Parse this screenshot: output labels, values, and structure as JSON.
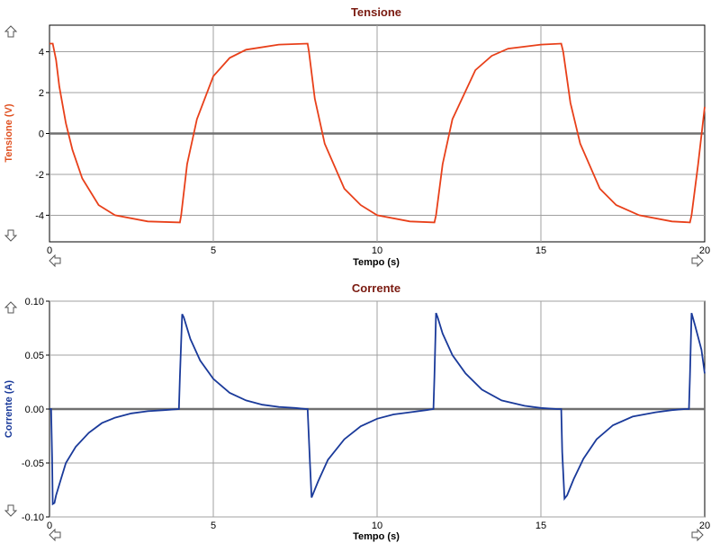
{
  "chart_data": [
    {
      "type": "line",
      "title": "Tensione",
      "xlabel": "Tempo (s)",
      "ylabel": "Tensione (V)",
      "xlim": [
        0,
        20
      ],
      "ylim": [
        -5.3,
        5.3
      ],
      "x_ticks": [
        0,
        5,
        10,
        15,
        20
      ],
      "y_ticks": [
        4,
        2,
        0,
        -2,
        -4
      ],
      "y_tick_labels": [
        "4",
        "2",
        "0",
        "-2",
        "-4"
      ],
      "grid": true,
      "series_color": "#e8401a",
      "series": [
        {
          "x": [
            0,
            0.1,
            0.2,
            0.3,
            0.5,
            0.7,
            1.0,
            1.5,
            2.0,
            3.0,
            3.98,
            4.02,
            4.2,
            4.5,
            5.0,
            5.5,
            6.0,
            7.0,
            7.88,
            7.92,
            8.1,
            8.4,
            9.0,
            9.5,
            10.0,
            11.0,
            11.75,
            11.8,
            12.0,
            12.3,
            13.0,
            13.5,
            14.0,
            15.0,
            15.62,
            15.68,
            15.9,
            16.2,
            16.8,
            17.3,
            18.0,
            19.0,
            19.55,
            19.6,
            19.8,
            20.0
          ],
          "values": [
            4.4,
            4.4,
            3.6,
            2.3,
            0.5,
            -0.8,
            -2.2,
            -3.5,
            -4.0,
            -4.3,
            -4.35,
            -4.0,
            -1.5,
            0.7,
            2.8,
            3.7,
            4.1,
            4.35,
            4.4,
            4.0,
            1.7,
            -0.5,
            -2.7,
            -3.5,
            -4.0,
            -4.3,
            -4.35,
            -4.0,
            -1.5,
            0.7,
            3.1,
            3.8,
            4.15,
            4.35,
            4.4,
            4.0,
            1.5,
            -0.5,
            -2.7,
            -3.5,
            -4.0,
            -4.3,
            -4.35,
            -4.0,
            -1.5,
            1.3
          ]
        }
      ]
    },
    {
      "type": "line",
      "title": "Corrente",
      "xlabel": "Tempo (s)",
      "ylabel": "Corrente (A)",
      "xlim": [
        0,
        20
      ],
      "ylim": [
        -0.1,
        0.1
      ],
      "x_ticks": [
        0,
        5,
        10,
        15,
        20
      ],
      "y_ticks": [
        0.1,
        0.05,
        0,
        -0.05,
        -0.1
      ],
      "y_tick_labels": [
        "0.10",
        "0.05",
        "0.00",
        "-0.05",
        "-0.10"
      ],
      "grid": true,
      "series_color": "#1a3a9a",
      "series": [
        {
          "x": [
            0,
            0.05,
            0.08,
            0.1,
            0.15,
            0.2,
            0.35,
            0.5,
            0.8,
            1.2,
            1.6,
            2.0,
            2.5,
            3.0,
            3.5,
            3.95,
            3.98,
            4.05,
            4.1,
            4.3,
            4.6,
            5.0,
            5.5,
            6.0,
            6.5,
            7.0,
            7.5,
            7.85,
            7.88,
            7.95,
            8.0,
            8.2,
            8.5,
            9.0,
            9.5,
            10.0,
            10.5,
            11.0,
            11.5,
            11.72,
            11.75,
            11.8,
            11.85,
            12.0,
            12.3,
            12.7,
            13.2,
            13.8,
            14.5,
            15.0,
            15.5,
            15.62,
            15.65,
            15.72,
            15.8,
            16.0,
            16.3,
            16.7,
            17.2,
            17.8,
            18.5,
            19.0,
            19.4,
            19.52,
            19.55,
            19.6,
            19.7,
            19.9,
            20.0
          ],
          "values": [
            0,
            0,
            -0.045,
            -0.088,
            -0.087,
            -0.08,
            -0.065,
            -0.05,
            -0.035,
            -0.022,
            -0.013,
            -0.008,
            -0.004,
            -0.002,
            -0.001,
            0,
            0.03,
            0.088,
            0.085,
            0.065,
            0.045,
            0.028,
            0.015,
            0.008,
            0.004,
            0.002,
            0.001,
            0,
            0,
            -0.05,
            -0.082,
            -0.067,
            -0.047,
            -0.028,
            -0.016,
            -0.009,
            -0.005,
            -0.003,
            -0.001,
            0,
            0.03,
            0.089,
            0.085,
            0.07,
            0.05,
            0.033,
            0.018,
            0.008,
            0.003,
            0.001,
            0,
            0,
            -0.04,
            -0.083,
            -0.08,
            -0.065,
            -0.046,
            -0.028,
            -0.015,
            -0.007,
            -0.003,
            -0.001,
            0,
            0,
            0.03,
            0.089,
            0.078,
            0.055,
            0.033
          ]
        }
      ]
    }
  ]
}
